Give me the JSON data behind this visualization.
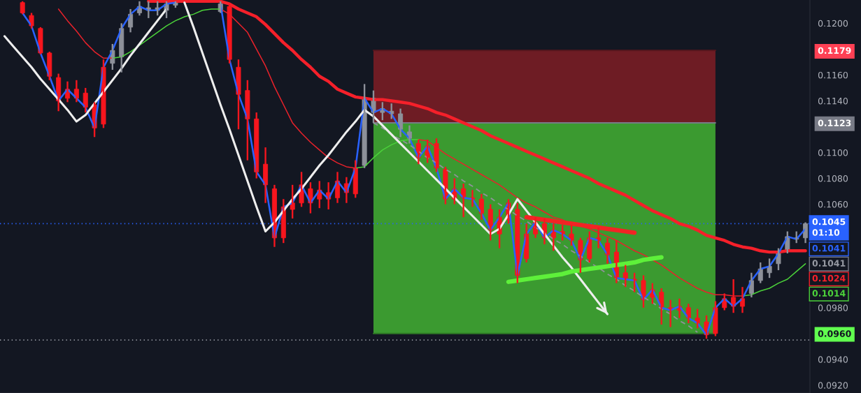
{
  "chart_data": {
    "type": "candlestick",
    "categories": [
      null,
      null,
      null,
      null,
      null,
      null,
      null,
      null,
      null,
      null,
      null,
      null,
      null,
      null,
      null,
      null,
      null,
      null,
      null,
      null,
      null,
      null,
      null,
      null,
      null,
      null,
      null,
      null,
      null,
      null,
      null,
      null,
      null,
      null,
      null,
      null,
      null,
      null,
      null,
      null,
      null,
      null,
      null,
      null,
      null,
      null,
      null,
      null,
      null,
      null,
      null,
      null,
      null,
      null,
      null,
      null,
      null,
      null,
      null,
      null,
      null,
      null,
      null,
      null,
      null,
      null,
      null,
      null,
      null,
      null,
      null,
      null,
      null,
      null,
      null,
      null,
      null,
      null,
      null,
      null,
      null,
      null,
      null,
      null,
      null,
      null,
      null,
      null,
      null,
      null
    ],
    "ohlc": [
      null,
      null,
      [
        0.1216,
        0.1217,
        0.1207,
        0.1208
      ],
      [
        0.1206,
        0.1208,
        0.1196,
        0.1198
      ],
      [
        0.1196,
        0.1197,
        0.1176,
        0.1177
      ],
      [
        0.1177,
        0.1178,
        0.1156,
        0.1159
      ],
      [
        0.1158,
        0.1161,
        0.1132,
        0.114
      ],
      [
        0.1149,
        0.1155,
        0.1139,
        0.1142
      ],
      [
        0.1149,
        0.1156,
        0.1139,
        0.1142
      ],
      [
        0.1146,
        0.115,
        0.1131,
        0.1135
      ],
      [
        0.1137,
        0.1139,
        0.1112,
        0.1119
      ],
      [
        0.1166,
        0.1172,
        0.1119,
        0.1122
      ],
      [
        0.1169,
        0.1184,
        0.1164,
        0.1179
      ],
      [
        0.1174,
        0.12,
        0.1162,
        0.1196
      ],
      [
        0.1197,
        0.1211,
        0.1193,
        0.1207
      ],
      [
        0.1208,
        0.1217,
        0.1206,
        0.1213
      ],
      [
        0.121,
        0.1217,
        0.1204,
        0.1212
      ],
      [
        0.121,
        0.1217,
        0.1206,
        0.1212
      ],
      [
        0.121,
        0.1217,
        0.1204,
        0.1215
      ],
      [
        0.1214,
        0.1217,
        0.1212,
        0.1216
      ],
      null,
      null,
      null,
      null,
      [
        0.1209,
        0.1217,
        0.1208,
        0.1215
      ],
      [
        0.1213,
        0.1215,
        0.1169,
        0.1172
      ],
      [
        0.1166,
        0.1172,
        0.1118,
        0.1145
      ],
      [
        0.1148,
        0.1156,
        0.1094,
        0.1126
      ],
      [
        0.1126,
        0.1131,
        0.108,
        0.1085
      ],
      [
        0.1091,
        0.1104,
        0.1061,
        0.1075
      ],
      [
        0.1072,
        0.1075,
        0.1027,
        0.1034
      ],
      [
        0.1058,
        0.1064,
        0.103,
        0.1034
      ],
      [
        0.1061,
        0.1075,
        0.1049,
        0.1056
      ],
      [
        0.1075,
        0.1085,
        0.1058,
        0.1061
      ],
      [
        0.1072,
        0.1077,
        0.1053,
        0.1061
      ],
      [
        0.1071,
        0.1078,
        0.1057,
        0.1064
      ],
      [
        0.1069,
        0.1077,
        0.1056,
        0.1064
      ],
      [
        0.1078,
        0.1085,
        0.1061,
        0.1065
      ],
      [
        0.1076,
        0.1081,
        0.1061,
        0.1069
      ],
      [
        0.1088,
        0.1094,
        0.1065,
        0.1068
      ],
      [
        0.109,
        0.1153,
        0.1088,
        0.1142
      ],
      [
        0.1131,
        0.1148,
        0.1123,
        0.1142
      ],
      [
        0.1131,
        0.1139,
        0.1125,
        0.1134
      ],
      [
        0.113,
        0.1138,
        0.1126,
        0.1132
      ],
      [
        0.1118,
        0.1134,
        0.1112,
        0.113
      ],
      [
        0.1111,
        0.1121,
        0.1107,
        0.1116
      ],
      [
        0.1107,
        0.111,
        0.1091,
        0.1096
      ],
      [
        0.1105,
        0.111,
        0.1092,
        0.1096
      ],
      [
        0.1107,
        0.1111,
        0.1085,
        0.1088
      ],
      [
        0.1087,
        0.1089,
        0.106,
        0.1064
      ],
      [
        0.1072,
        0.108,
        0.106,
        0.1064
      ],
      [
        0.1072,
        0.1076,
        0.105,
        0.1065
      ],
      [
        0.1065,
        0.1071,
        0.1058,
        0.1064
      ],
      [
        0.1064,
        0.1068,
        0.1048,
        0.1053
      ],
      [
        0.1056,
        0.106,
        0.1032,
        0.104
      ],
      [
        0.105,
        0.1056,
        0.1026,
        0.1037
      ],
      [
        0.1061,
        0.1064,
        0.1045,
        0.1048
      ],
      [
        0.1056,
        0.1061,
        0.0999,
        0.1005
      ],
      [
        0.1037,
        0.1045,
        0.1015,
        0.1018
      ],
      [
        0.1046,
        0.105,
        0.1034,
        0.1037
      ],
      [
        0.1045,
        0.1049,
        0.1029,
        0.1034
      ],
      [
        0.104,
        0.1045,
        0.1024,
        0.1034
      ],
      [
        0.1039,
        0.1044,
        0.1032,
        0.1037
      ],
      [
        0.1037,
        0.1044,
        0.1028,
        0.1032
      ],
      [
        0.1032,
        0.1034,
        0.1007,
        0.1017
      ],
      [
        0.1034,
        0.1039,
        0.1015,
        0.1018
      ],
      [
        0.1034,
        0.1042,
        0.1026,
        0.1032
      ],
      [
        0.103,
        0.1034,
        0.1014,
        0.1021
      ],
      [
        0.1023,
        0.1032,
        0.0999,
        0.1003
      ],
      [
        0.1007,
        0.1013,
        0.0996,
        0.1002
      ],
      [
        0.1002,
        0.1007,
        0.0992,
        0.1001
      ],
      [
        0.1001,
        0.1005,
        0.098,
        0.0986
      ],
      [
        0.0994,
        0.0999,
        0.0983,
        0.0988
      ],
      [
        0.0992,
        0.0995,
        0.0967,
        0.098
      ],
      [
        0.098,
        0.0986,
        0.0965,
        0.0978
      ],
      [
        0.0981,
        0.0987,
        0.0972,
        0.0978
      ],
      [
        0.098,
        0.0983,
        0.0968,
        0.0972
      ],
      [
        0.0972,
        0.0979,
        0.0964,
        0.0968
      ],
      [
        0.0969,
        0.0974,
        0.0956,
        0.0959
      ],
      [
        0.098,
        0.0985,
        0.0958,
        0.096
      ],
      [
        0.0987,
        0.0991,
        0.0978,
        0.098
      ],
      [
        0.0988,
        0.1002,
        0.0976,
        0.0981
      ],
      [
        0.0987,
        0.0996,
        0.0976,
        0.0981
      ],
      [
        0.0991,
        0.1007,
        0.0988,
        0.1001
      ],
      [
        0.1001,
        0.1015,
        0.0999,
        0.101
      ],
      [
        0.1007,
        0.1018,
        0.1003,
        0.1012
      ],
      [
        0.1014,
        0.1026,
        0.1009,
        0.1022
      ],
      [
        0.1024,
        0.1039,
        0.1022,
        0.1035
      ],
      [
        0.1033,
        0.1039,
        0.103,
        0.1034
      ],
      [
        0.1034,
        0.1046,
        0.103,
        0.1045
      ]
    ],
    "colors": [
      null,
      null,
      "#f7161e",
      "#f7161e",
      "#f7161e",
      "#f7161e",
      "#f7161e",
      "#f7161e",
      "#f7161e",
      "#f7161e",
      "#f7161e",
      "#f7161e",
      "#8d9099",
      "#8d9099",
      "#8d9099",
      "#8d9099",
      "#8d9099",
      "#8d9099",
      "#8d9099",
      "#8d9099",
      null,
      null,
      null,
      null,
      "#8d9099",
      "#f7161e",
      "#f7161e",
      "#f7161e",
      "#f7161e",
      "#f7161e",
      "#f7161e",
      "#f7161e",
      "#f7161e",
      "#f7161e",
      "#f7161e",
      "#f7161e",
      "#f7161e",
      "#f7161e",
      "#f7161e",
      "#f7161e",
      "#8d9099",
      "#8d9099",
      "#8d9099",
      "#8d9099",
      "#8d9099",
      "#8d9099",
      "#f7161e",
      "#f7161e",
      "#f7161e",
      "#f7161e",
      "#f7161e",
      "#f7161e",
      "#f7161e",
      "#f7161e",
      "#f7161e",
      "#f7161e",
      "#f7161e",
      "#f7161e",
      "#f7161e",
      "#f7161e",
      "#f7161e",
      "#f7161e",
      "#f7161e",
      "#f7161e",
      "#f7161e",
      "#f7161e",
      "#f7161e",
      "#f7161e",
      "#f7161e",
      "#f7161e",
      "#f7161e",
      "#f7161e",
      "#f7161e",
      "#f7161e",
      "#f7161e",
      "#f7161e",
      "#f7161e",
      "#f7161e",
      "#f7161e",
      "#f7161e",
      "#f7161e",
      "#f7161e",
      "#f7161e",
      "#8d9099",
      "#8d9099",
      "#8d9099",
      "#8d9099",
      "#8d9099",
      "#8d9099",
      "#8d9099"
    ],
    "series": [
      {
        "type": "line",
        "color": "#2962ff",
        "values": [
          null,
          null,
          0.1208,
          0.1198,
          0.1177,
          0.1159,
          0.114,
          0.1149,
          0.1142,
          0.1135,
          0.1119,
          0.1166,
          0.1179,
          0.1196,
          0.1207,
          0.1213,
          0.121,
          0.121,
          0.1215,
          0.1216,
          null,
          null,
          null,
          null,
          0.1215,
          0.1172,
          0.1145,
          0.1126,
          0.1085,
          0.1075,
          0.1034,
          0.1058,
          0.1061,
          0.1075,
          0.1061,
          0.1071,
          0.1064,
          0.1078,
          0.1069,
          0.1088,
          0.1142,
          0.1131,
          0.1134,
          0.113,
          0.1118,
          0.1111,
          0.1096,
          0.1105,
          0.1088,
          0.1064,
          0.1072,
          0.1065,
          0.1064,
          0.1053,
          0.104,
          0.105,
          0.1061,
          0.1005,
          0.1037,
          0.1046,
          0.1034,
          0.104,
          0.1037,
          0.1032,
          0.1017,
          0.1034,
          0.1032,
          0.1021,
          0.1003,
          0.1002,
          0.1001,
          0.0986,
          0.0994,
          0.098,
          0.0978,
          0.0981,
          0.0972,
          0.0968,
          0.0959,
          0.098,
          0.0987,
          0.0981,
          0.0987,
          0.1001,
          0.101,
          0.1012,
          0.1022,
          0.1035,
          0.1033,
          0.1041
        ]
      },
      {
        "type": "line",
        "color": "#f5202a",
        "values": [
          null,
          null,
          null,
          null,
          null,
          null,
          null,
          null,
          null,
          null,
          null,
          null,
          null,
          null,
          null,
          null,
          0.1217,
          0.1217,
          0.1217,
          0.1217,
          0.1217,
          0.1217,
          0.1217,
          0.1217,
          0.1217,
          0.1215,
          0.1211,
          0.1208,
          0.1205,
          0.1199,
          0.1192,
          0.1185,
          0.1179,
          0.1172,
          0.1166,
          0.1159,
          0.1155,
          0.1149,
          0.1146,
          0.1143,
          0.1142,
          0.1141,
          0.1141,
          0.114,
          0.1139,
          0.1138,
          0.1136,
          0.1134,
          0.1131,
          0.1129,
          0.1126,
          0.1123,
          0.112,
          0.1117,
          0.1113,
          0.111,
          0.1107,
          0.1104,
          0.1101,
          0.1098,
          0.1095,
          0.1092,
          0.1089,
          0.1086,
          0.1083,
          0.108,
          0.1076,
          0.1073,
          0.107,
          0.1067,
          0.1063,
          0.1059,
          0.1055,
          0.1052,
          0.1049,
          0.1045,
          0.1043,
          0.104,
          0.1036,
          0.1034,
          0.1032,
          0.1029,
          0.1027,
          0.1026,
          0.1024,
          0.1023,
          0.1023,
          0.1024,
          0.1024,
          0.1024
        ]
      },
      {
        "type": "line",
        "color": "#e8222b",
        "values": [
          null,
          null,
          null,
          null,
          null,
          null,
          0.1211,
          0.1202,
          0.1194,
          0.1185,
          0.1178,
          0.1173,
          0.1173,
          null,
          null,
          null,
          null,
          null,
          null,
          null,
          null,
          null,
          null,
          null,
          0.1211,
          0.1207,
          0.12,
          0.1193,
          0.118,
          0.1167,
          0.1151,
          0.1137,
          0.1123,
          0.1115,
          0.1108,
          0.1102,
          0.1096,
          0.1092,
          0.1089,
          0.1088,
          null,
          null,
          null,
          null,
          null,
          null,
          0.111,
          0.1109,
          0.1104,
          0.1099,
          0.1095,
          0.1091,
          0.1087,
          0.1083,
          0.1079,
          0.1075,
          0.107,
          0.1065,
          0.1061,
          0.1058,
          0.1054,
          0.105,
          0.1048,
          0.1045,
          0.1043,
          0.1041,
          0.1038,
          0.1035,
          0.1032,
          0.1028,
          0.1024,
          0.1021,
          0.1017,
          0.1013,
          0.1008,
          0.1003,
          0.0999,
          0.0995,
          0.0992,
          0.099,
          0.099,
          0.0989,
          0.0989,
          null,
          null,
          null,
          null,
          null,
          null,
          null
        ]
      },
      {
        "type": "line",
        "color": "#4bd13a",
        "values": [
          null,
          null,
          null,
          null,
          null,
          null,
          null,
          null,
          null,
          null,
          null,
          null,
          0.1173,
          0.1174,
          0.1178,
          0.1183,
          0.1188,
          0.1193,
          0.1198,
          0.1202,
          0.1205,
          0.1207,
          0.121,
          0.1211,
          0.1211,
          null,
          null,
          null,
          null,
          null,
          null,
          null,
          null,
          null,
          null,
          null,
          null,
          null,
          null,
          0.1088,
          0.1089,
          0.1096,
          0.1102,
          0.1106,
          0.1109,
          0.111,
          0.111,
          null,
          null,
          null,
          null,
          null,
          null,
          null,
          null,
          null,
          null,
          null,
          null,
          null,
          null,
          null,
          null,
          null,
          null,
          null,
          null,
          null,
          null,
          null,
          null,
          null,
          null,
          null,
          null,
          null,
          null,
          null,
          null,
          null,
          null,
          null,
          0.0989,
          0.099,
          0.0993,
          0.0995,
          0.0999,
          0.1002,
          0.1008,
          0.1014
        ]
      },
      {
        "type": "line",
        "color": "#58161d",
        "values": [
          null,
          null,
          null,
          null,
          null,
          null,
          null,
          null,
          null,
          null,
          null,
          null,
          null,
          null,
          null,
          null,
          null,
          null,
          null,
          null,
          null,
          null,
          null,
          null,
          null,
          null,
          null,
          null,
          null,
          null,
          null,
          null,
          null,
          null,
          null,
          null,
          null,
          null,
          null,
          null,
          null,
          0.1179,
          0.1179,
          0.1179,
          0.1179,
          0.1179,
          0.1179,
          0.1179,
          0.1179,
          0.1179,
          0.1179,
          0.1179,
          0.1179,
          0.1179,
          0.1179,
          0.1179,
          0.1179,
          0.1179,
          0.1179,
          0.1179,
          0.1179,
          0.1179,
          0.1179,
          0.1179,
          0.1179,
          0.1179,
          0.1179,
          0.1179,
          0.1179,
          0.1179,
          0.1179,
          0.1179,
          0.1179,
          0.1179,
          0.1179,
          0.1179,
          0.1179,
          0.1179,
          0.1179,
          0.1179,
          null,
          null,
          null,
          null,
          null,
          null,
          null,
          null,
          null,
          null
        ],
        "lower": [
          null,
          null,
          null,
          null,
          null,
          null,
          null,
          null,
          null,
          null,
          null,
          null,
          null,
          null,
          null,
          null,
          null,
          null,
          null,
          null,
          null,
          null,
          null,
          null,
          null,
          null,
          null,
          null,
          null,
          null,
          null,
          null,
          null,
          null,
          null,
          null,
          null,
          null,
          null,
          null,
          null,
          0.1123,
          0.1123,
          0.1123,
          0.1123,
          0.1123,
          0.1123,
          0.1123,
          0.1123,
          0.1123,
          0.1123,
          0.1123,
          0.1123,
          0.1123,
          0.1123,
          0.1123,
          0.1123,
          0.1123,
          0.1123,
          0.1123,
          0.1123,
          0.1123,
          0.1123,
          0.1123,
          0.1123,
          0.1123,
          0.1123,
          0.1123,
          0.1123,
          0.1123,
          0.1123,
          0.1123,
          0.1123,
          0.1123,
          0.1123,
          0.1123,
          0.1123,
          0.1123,
          0.1123,
          0.1123,
          null,
          null,
          null,
          null,
          null,
          null,
          null,
          null,
          null,
          null
        ],
        "upper": [
          null,
          null,
          null,
          null,
          null,
          null,
          null,
          null,
          null,
          null,
          null,
          null,
          null,
          null,
          null,
          null,
          null,
          null,
          null,
          null,
          null,
          null,
          null,
          null,
          null,
          null,
          null,
          null,
          null,
          null,
          null,
          null,
          null,
          null,
          null,
          null,
          null,
          null,
          null,
          null,
          null,
          0.1179,
          0.1179,
          0.1179,
          0.1179,
          0.1179,
          0.1179,
          0.1179,
          0.1179,
          0.1179,
          0.1179,
          0.1179,
          0.1179,
          0.1179,
          0.1179,
          0.1179,
          0.1179,
          0.1179,
          0.1179,
          0.1179,
          0.1179,
          0.1179,
          0.1179,
          0.1179,
          0.1179,
          0.1179,
          0.1179,
          0.1179,
          0.1179,
          0.1179,
          0.1179,
          0.1179,
          0.1179,
          0.1179,
          0.1179,
          0.1179,
          0.1179,
          0.1179,
          0.1179,
          0.1179,
          null,
          null,
          null,
          null,
          null,
          null,
          null,
          null,
          null,
          null
        ]
      },
      {
        "type": "line",
        "color": "#2f7b26",
        "values": [
          null,
          null,
          null,
          null,
          null,
          null,
          null,
          null,
          null,
          null,
          null,
          null,
          null,
          null,
          null,
          null,
          null,
          null,
          null,
          null,
          null,
          null,
          null,
          null,
          null,
          null,
          null,
          null,
          null,
          null,
          null,
          null,
          null,
          null,
          null,
          null,
          null,
          null,
          null,
          null,
          null,
          0.096,
          0.096,
          0.096,
          0.096,
          0.096,
          0.096,
          0.096,
          0.096,
          0.096,
          0.096,
          0.096,
          0.096,
          0.096,
          0.096,
          0.096,
          0.096,
          0.096,
          0.096,
          0.096,
          0.096,
          0.096,
          0.096,
          0.096,
          0.096,
          0.096,
          0.096,
          0.096,
          0.096,
          0.096,
          0.096,
          0.096,
          0.096,
          0.096,
          0.096,
          0.096,
          0.096,
          0.096,
          0.096,
          0.096,
          null,
          null,
          null,
          null,
          null,
          null,
          null,
          null,
          null,
          null
        ],
        "lower": [
          null,
          null,
          null,
          null,
          null,
          null,
          null,
          null,
          null,
          null,
          null,
          null,
          null,
          null,
          null,
          null,
          null,
          null,
          null,
          null,
          null,
          null,
          null,
          null,
          null,
          null,
          null,
          null,
          null,
          null,
          null,
          null,
          null,
          null,
          null,
          null,
          null,
          null,
          null,
          null,
          null,
          0.096,
          0.096,
          0.096,
          0.096,
          0.096,
          0.096,
          0.096,
          0.096,
          0.096,
          0.096,
          0.096,
          0.096,
          0.096,
          0.096,
          0.096,
          0.096,
          0.096,
          0.096,
          0.096,
          0.096,
          0.096,
          0.096,
          0.096,
          0.096,
          0.096,
          0.096,
          0.096,
          0.096,
          0.096,
          0.096,
          0.096,
          0.096,
          0.096,
          0.096,
          0.096,
          0.096,
          0.096,
          0.096,
          0.096,
          null,
          null,
          null,
          null,
          null,
          null,
          null,
          null,
          null,
          null
        ],
        "upper": [
          null,
          null,
          null,
          null,
          null,
          null,
          null,
          null,
          null,
          null,
          null,
          null,
          null,
          null,
          null,
          null,
          null,
          null,
          null,
          null,
          null,
          null,
          null,
          null,
          null,
          null,
          null,
          null,
          null,
          null,
          null,
          null,
          null,
          null,
          null,
          null,
          null,
          null,
          null,
          null,
          null,
          0.1123,
          0.1123,
          0.1123,
          0.1123,
          0.1123,
          0.1123,
          0.1123,
          0.1123,
          0.1123,
          0.1123,
          0.1123,
          0.1123,
          0.1123,
          0.1123,
          0.1123,
          0.1123,
          0.1123,
          0.1123,
          0.1123,
          0.1123,
          0.1123,
          0.1123,
          0.1123,
          0.1123,
          0.1123,
          0.1123,
          0.1123,
          0.1123,
          0.1123,
          0.1123,
          0.1123,
          0.1123,
          0.1123,
          0.1123,
          0.1123,
          0.1123,
          0.1123,
          0.1123,
          0.1123,
          null,
          null,
          null,
          null,
          null,
          null,
          null,
          null,
          null,
          null
        ]
      },
      {
        "type": "line",
        "color": "#787b86",
        "values": [
          null,
          null,
          null,
          null,
          null,
          null,
          null,
          null,
          null,
          null,
          null,
          null,
          null,
          null,
          null,
          null,
          null,
          null,
          null,
          null,
          null,
          null,
          null,
          null,
          null,
          null,
          null,
          null,
          null,
          null,
          null,
          null,
          null,
          null,
          null,
          null,
          null,
          null,
          null,
          null,
          null,
          0.1123,
          0.1123,
          0.1123,
          0.1123,
          0.1123,
          0.1123,
          0.1123,
          0.1123,
          0.1123,
          0.1123,
          0.1123,
          0.1123,
          0.1123,
          0.1123,
          0.1123,
          0.1123,
          0.1123,
          0.1123,
          0.1123,
          0.1123,
          0.1123,
          0.1123,
          0.1123,
          0.1123,
          0.1123,
          0.1123,
          0.1123,
          0.1123,
          0.1123,
          0.1123,
          0.1123,
          0.1123,
          0.1123,
          0.1123,
          0.1123,
          0.1123,
          0.1123,
          0.1123,
          0.1123,
          null,
          null,
          null,
          null,
          null,
          null,
          null,
          null,
          null,
          null
        ]
      },
      {
        "type": "line",
        "color": "#eeeeee",
        "values": [
          0.119,
          0.1182,
          0.1174,
          0.1166,
          0.1157,
          0.1149,
          0.1141,
          0.1133,
          0.1124,
          0.1129,
          0.1138,
          0.1147,
          0.1156,
          0.1165,
          0.1175,
          0.1184,
          0.1193,
          0.1202,
          0.1211,
          null,
          0.1216,
          0.1197,
          0.1177,
          0.1157,
          0.1137,
          0.1118,
          0.1098,
          0.1078,
          0.1058,
          0.1039,
          0.1046,
          0.1055,
          0.1064,
          0.1072,
          0.1081,
          0.109,
          0.1098,
          0.1107,
          0.1116,
          0.1124,
          0.1133,
          0.1128,
          0.1121,
          0.1114,
          0.1107,
          0.11,
          0.1093,
          0.1086,
          0.1079,
          0.1072,
          0.1065,
          0.1058,
          0.1051,
          0.1044,
          0.1037,
          0.1041,
          0.1052,
          0.1064,
          0.1055,
          0.1046,
          0.1037,
          0.1028,
          0.1019,
          0.1011,
          0.1002,
          0.0993,
          0.0984,
          0.0975,
          null,
          null,
          null,
          null,
          null,
          null,
          null,
          null,
          null,
          null,
          null,
          null,
          null,
          null,
          null,
          null,
          null,
          null,
          null,
          null,
          null,
          null
        ]
      },
      {
        "type": "line",
        "color": "#f22424",
        "values": [
          null,
          null,
          null,
          null,
          null,
          null,
          null,
          null,
          null,
          null,
          null,
          null,
          null,
          null,
          null,
          null,
          null,
          null,
          null,
          null,
          null,
          null,
          null,
          null,
          null,
          null,
          null,
          null,
          null,
          null,
          null,
          null,
          null,
          null,
          null,
          null,
          null,
          null,
          null,
          null,
          null,
          null,
          null,
          null,
          null,
          null,
          null,
          null,
          null,
          null,
          null,
          null,
          null,
          null,
          null,
          null,
          null,
          null,
          0.105,
          0.1049,
          0.1048,
          0.1047,
          0.1046,
          0.1045,
          0.1044,
          0.1043,
          0.1042,
          0.1041,
          0.104,
          0.1039,
          0.1038,
          null,
          null,
          null,
          null,
          null,
          null,
          null,
          null,
          null,
          null,
          null,
          null,
          null,
          null,
          null,
          null,
          null,
          null,
          null
        ]
      },
      {
        "type": "line",
        "color": "#5ef03a",
        "values": [
          null,
          null,
          null,
          null,
          null,
          null,
          null,
          null,
          null,
          null,
          null,
          null,
          null,
          null,
          null,
          null,
          null,
          null,
          null,
          null,
          null,
          null,
          null,
          null,
          null,
          null,
          null,
          null,
          null,
          null,
          null,
          null,
          null,
          null,
          null,
          null,
          null,
          null,
          null,
          null,
          null,
          null,
          null,
          null,
          null,
          null,
          null,
          null,
          null,
          null,
          null,
          null,
          null,
          null,
          null,
          null,
          0.1,
          0.1001,
          0.1002,
          0.1003,
          0.1004,
          0.1005,
          0.1006,
          0.1008,
          0.1009,
          0.101,
          0.1011,
          0.1012,
          0.1013,
          0.1014,
          0.1015,
          0.1017,
          0.1018,
          0.1019,
          null,
          null,
          null,
          null,
          null,
          null,
          null,
          null,
          null,
          null,
          null,
          null,
          null,
          null,
          null,
          null
        ]
      },
      {
        "type": "line",
        "color": "#8f9299",
        "line_style": "dashed",
        "values": [
          null,
          null,
          null,
          null,
          null,
          null,
          null,
          null,
          null,
          null,
          null,
          null,
          null,
          null,
          null,
          null,
          null,
          null,
          null,
          null,
          null,
          null,
          null,
          null,
          null,
          null,
          null,
          null,
          null,
          null,
          null,
          null,
          null,
          null,
          null,
          null,
          null,
          null,
          null,
          null,
          null,
          0.1123,
          0.1119,
          0.1114,
          0.111,
          0.1106,
          0.1101,
          0.1096,
          0.1092,
          0.1087,
          0.1083,
          0.1078,
          0.1074,
          0.1069,
          0.1065,
          0.106,
          0.1056,
          0.1051,
          0.1047,
          0.1042,
          0.1038,
          0.1033,
          0.1029,
          0.1024,
          0.102,
          0.1015,
          0.1011,
          0.1006,
          0.1002,
          0.0997,
          0.0993,
          0.0988,
          0.0984,
          0.0979,
          0.0975,
          0.097,
          0.0966,
          0.0961,
          null,
          null,
          null,
          null,
          null,
          null,
          null,
          null,
          null,
          null,
          null,
          null
        ]
      }
    ],
    "ref_lines": [
      {
        "axis": "y",
        "value": 0.1045,
        "label": "0.1045\n01:10",
        "color": "#2962ff",
        "line_style": "dotted"
      },
      {
        "axis": "y",
        "value": 0.0955,
        "color": "#9598a1",
        "line_style": "dotted"
      }
    ],
    "annotations": [
      "0.1041",
      "0.1041",
      "0.1024",
      "0.1014"
    ],
    "ylim": [
      0.0914,
      0.1218
    ],
    "yticks": [
      {
        "value": 0.092,
        "label": "0.0920"
      },
      {
        "value": 0.094,
        "label": "0.0940"
      },
      {
        "value": 0.096,
        "label": "0.0960"
      },
      {
        "value": 0.098,
        "label": "0.0980"
      },
      {
        "value": 0.106,
        "label": "0.1060"
      },
      {
        "value": 0.108,
        "label": "0.1080"
      },
      {
        "value": 0.11,
        "label": "0.1100"
      },
      {
        "value": 0.1123,
        "label": "0.1123"
      },
      {
        "value": 0.114,
        "label": "0.1140"
      },
      {
        "value": 0.116,
        "label": "0.1160"
      },
      {
        "value": 0.1179,
        "label": "0.1179"
      },
      {
        "value": 0.12,
        "label": "0.1200"
      }
    ],
    "tick_labels": "y"
  }
}
